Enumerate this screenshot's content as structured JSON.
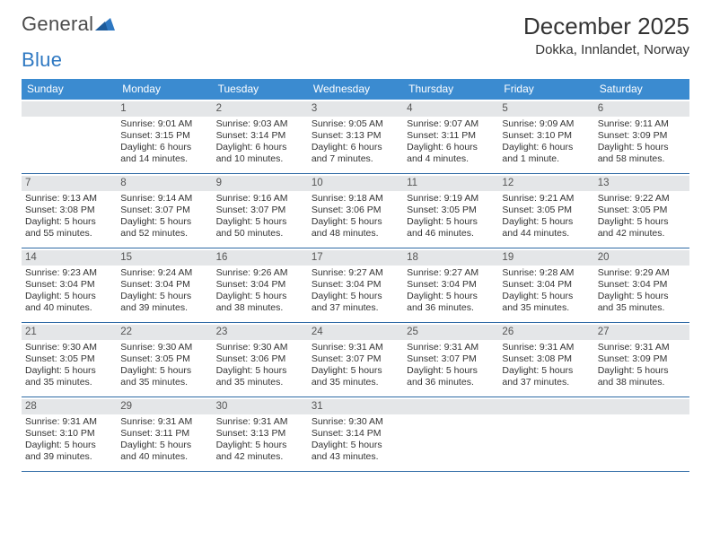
{
  "logo": {
    "part1": "General",
    "part2": "Blue"
  },
  "title": "December 2025",
  "subtitle": "Dokka, Innlandet, Norway",
  "colors": {
    "header_bg": "#3b8bd0",
    "header_text": "#ffffff",
    "daynum_bg": "#e4e6e8",
    "week_border": "#2e6aa5",
    "logo_gray": "#4b4b4b",
    "logo_blue": "#2e78c2",
    "text": "#333333"
  },
  "weekdays": [
    "Sunday",
    "Monday",
    "Tuesday",
    "Wednesday",
    "Thursday",
    "Friday",
    "Saturday"
  ],
  "weeks": [
    [
      {
        "num": "",
        "lines": []
      },
      {
        "num": "1",
        "lines": [
          "Sunrise: 9:01 AM",
          "Sunset: 3:15 PM",
          "Daylight: 6 hours",
          "and 14 minutes."
        ]
      },
      {
        "num": "2",
        "lines": [
          "Sunrise: 9:03 AM",
          "Sunset: 3:14 PM",
          "Daylight: 6 hours",
          "and 10 minutes."
        ]
      },
      {
        "num": "3",
        "lines": [
          "Sunrise: 9:05 AM",
          "Sunset: 3:13 PM",
          "Daylight: 6 hours",
          "and 7 minutes."
        ]
      },
      {
        "num": "4",
        "lines": [
          "Sunrise: 9:07 AM",
          "Sunset: 3:11 PM",
          "Daylight: 6 hours",
          "and 4 minutes."
        ]
      },
      {
        "num": "5",
        "lines": [
          "Sunrise: 9:09 AM",
          "Sunset: 3:10 PM",
          "Daylight: 6 hours",
          "and 1 minute."
        ]
      },
      {
        "num": "6",
        "lines": [
          "Sunrise: 9:11 AM",
          "Sunset: 3:09 PM",
          "Daylight: 5 hours",
          "and 58 minutes."
        ]
      }
    ],
    [
      {
        "num": "7",
        "lines": [
          "Sunrise: 9:13 AM",
          "Sunset: 3:08 PM",
          "Daylight: 5 hours",
          "and 55 minutes."
        ]
      },
      {
        "num": "8",
        "lines": [
          "Sunrise: 9:14 AM",
          "Sunset: 3:07 PM",
          "Daylight: 5 hours",
          "and 52 minutes."
        ]
      },
      {
        "num": "9",
        "lines": [
          "Sunrise: 9:16 AM",
          "Sunset: 3:07 PM",
          "Daylight: 5 hours",
          "and 50 minutes."
        ]
      },
      {
        "num": "10",
        "lines": [
          "Sunrise: 9:18 AM",
          "Sunset: 3:06 PM",
          "Daylight: 5 hours",
          "and 48 minutes."
        ]
      },
      {
        "num": "11",
        "lines": [
          "Sunrise: 9:19 AM",
          "Sunset: 3:05 PM",
          "Daylight: 5 hours",
          "and 46 minutes."
        ]
      },
      {
        "num": "12",
        "lines": [
          "Sunrise: 9:21 AM",
          "Sunset: 3:05 PM",
          "Daylight: 5 hours",
          "and 44 minutes."
        ]
      },
      {
        "num": "13",
        "lines": [
          "Sunrise: 9:22 AM",
          "Sunset: 3:05 PM",
          "Daylight: 5 hours",
          "and 42 minutes."
        ]
      }
    ],
    [
      {
        "num": "14",
        "lines": [
          "Sunrise: 9:23 AM",
          "Sunset: 3:04 PM",
          "Daylight: 5 hours",
          "and 40 minutes."
        ]
      },
      {
        "num": "15",
        "lines": [
          "Sunrise: 9:24 AM",
          "Sunset: 3:04 PM",
          "Daylight: 5 hours",
          "and 39 minutes."
        ]
      },
      {
        "num": "16",
        "lines": [
          "Sunrise: 9:26 AM",
          "Sunset: 3:04 PM",
          "Daylight: 5 hours",
          "and 38 minutes."
        ]
      },
      {
        "num": "17",
        "lines": [
          "Sunrise: 9:27 AM",
          "Sunset: 3:04 PM",
          "Daylight: 5 hours",
          "and 37 minutes."
        ]
      },
      {
        "num": "18",
        "lines": [
          "Sunrise: 9:27 AM",
          "Sunset: 3:04 PM",
          "Daylight: 5 hours",
          "and 36 minutes."
        ]
      },
      {
        "num": "19",
        "lines": [
          "Sunrise: 9:28 AM",
          "Sunset: 3:04 PM",
          "Daylight: 5 hours",
          "and 35 minutes."
        ]
      },
      {
        "num": "20",
        "lines": [
          "Sunrise: 9:29 AM",
          "Sunset: 3:04 PM",
          "Daylight: 5 hours",
          "and 35 minutes."
        ]
      }
    ],
    [
      {
        "num": "21",
        "lines": [
          "Sunrise: 9:30 AM",
          "Sunset: 3:05 PM",
          "Daylight: 5 hours",
          "and 35 minutes."
        ]
      },
      {
        "num": "22",
        "lines": [
          "Sunrise: 9:30 AM",
          "Sunset: 3:05 PM",
          "Daylight: 5 hours",
          "and 35 minutes."
        ]
      },
      {
        "num": "23",
        "lines": [
          "Sunrise: 9:30 AM",
          "Sunset: 3:06 PM",
          "Daylight: 5 hours",
          "and 35 minutes."
        ]
      },
      {
        "num": "24",
        "lines": [
          "Sunrise: 9:31 AM",
          "Sunset: 3:07 PM",
          "Daylight: 5 hours",
          "and 35 minutes."
        ]
      },
      {
        "num": "25",
        "lines": [
          "Sunrise: 9:31 AM",
          "Sunset: 3:07 PM",
          "Daylight: 5 hours",
          "and 36 minutes."
        ]
      },
      {
        "num": "26",
        "lines": [
          "Sunrise: 9:31 AM",
          "Sunset: 3:08 PM",
          "Daylight: 5 hours",
          "and 37 minutes."
        ]
      },
      {
        "num": "27",
        "lines": [
          "Sunrise: 9:31 AM",
          "Sunset: 3:09 PM",
          "Daylight: 5 hours",
          "and 38 minutes."
        ]
      }
    ],
    [
      {
        "num": "28",
        "lines": [
          "Sunrise: 9:31 AM",
          "Sunset: 3:10 PM",
          "Daylight: 5 hours",
          "and 39 minutes."
        ]
      },
      {
        "num": "29",
        "lines": [
          "Sunrise: 9:31 AM",
          "Sunset: 3:11 PM",
          "Daylight: 5 hours",
          "and 40 minutes."
        ]
      },
      {
        "num": "30",
        "lines": [
          "Sunrise: 9:31 AM",
          "Sunset: 3:13 PM",
          "Daylight: 5 hours",
          "and 42 minutes."
        ]
      },
      {
        "num": "31",
        "lines": [
          "Sunrise: 9:30 AM",
          "Sunset: 3:14 PM",
          "Daylight: 5 hours",
          "and 43 minutes."
        ]
      },
      {
        "num": "",
        "lines": []
      },
      {
        "num": "",
        "lines": []
      },
      {
        "num": "",
        "lines": []
      }
    ]
  ]
}
